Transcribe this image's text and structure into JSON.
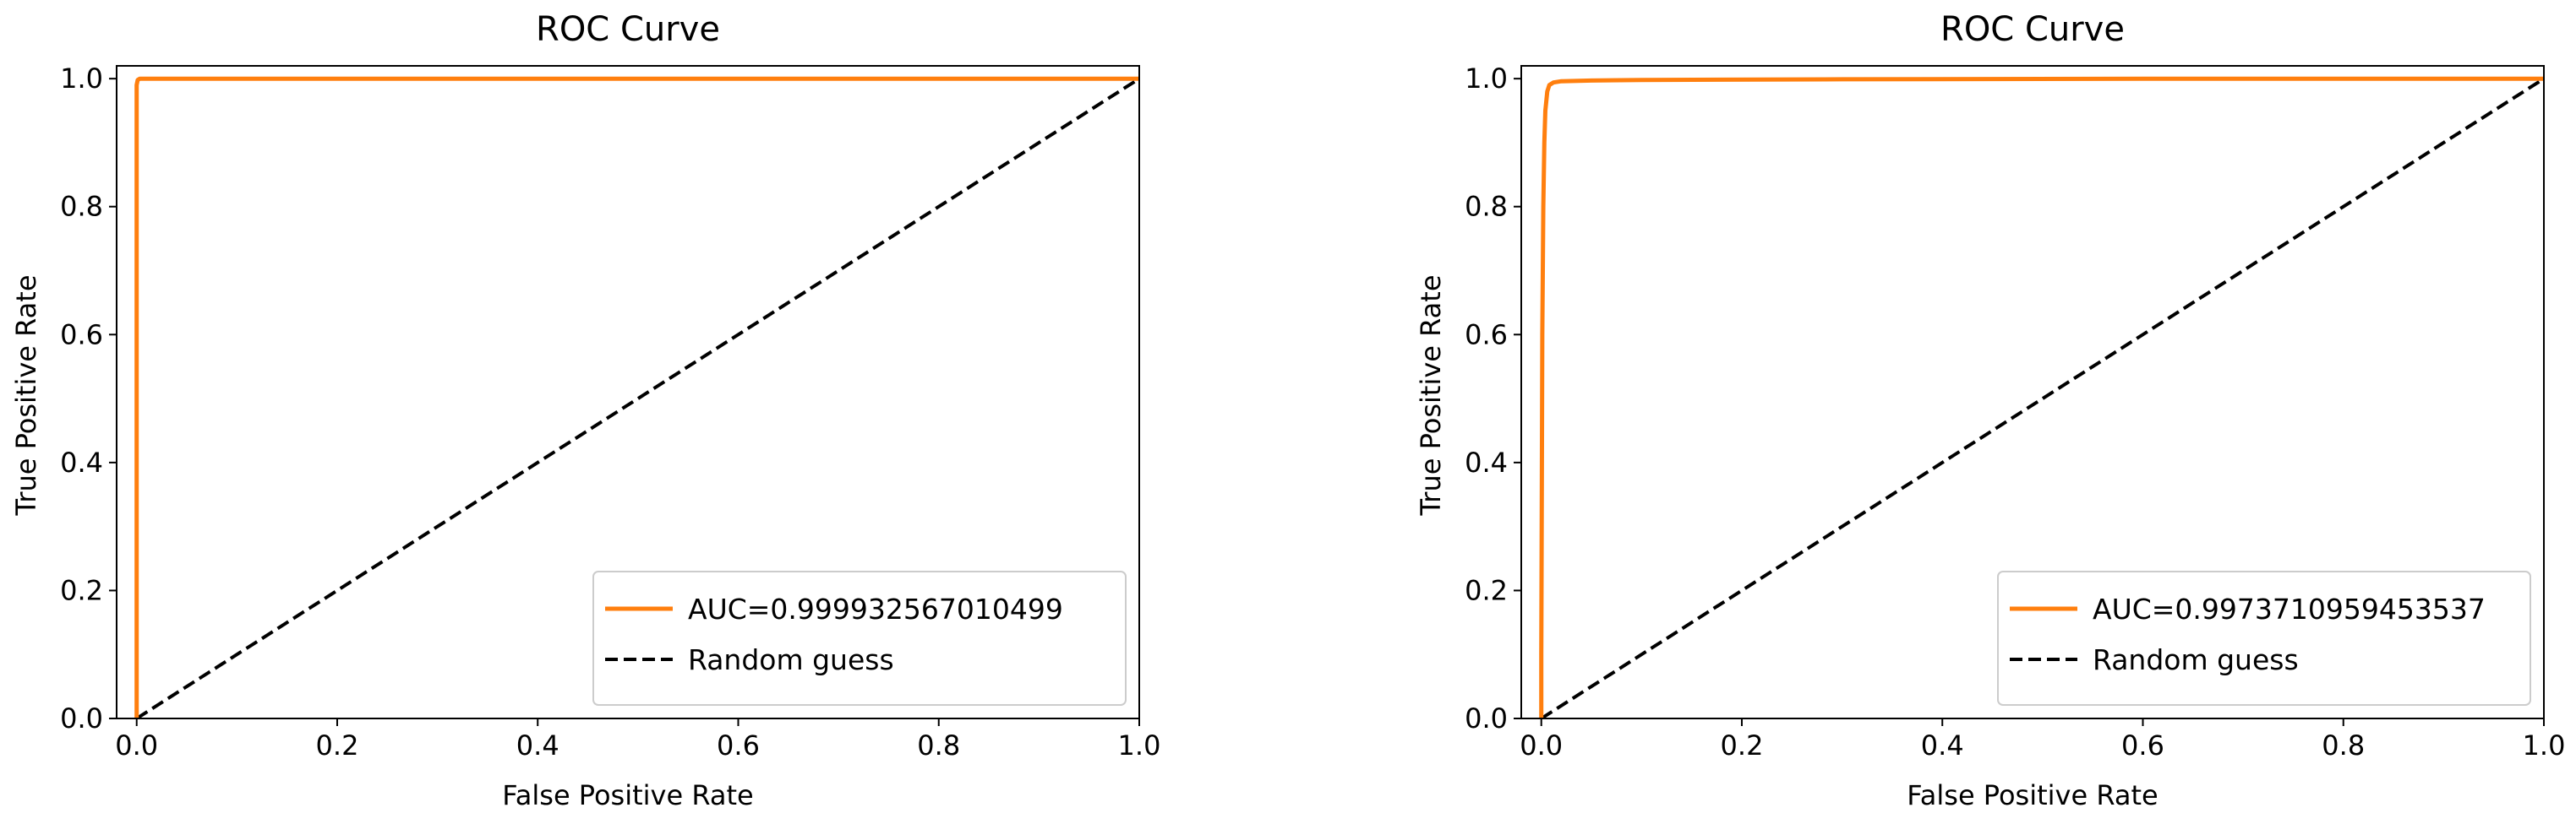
{
  "colors": {
    "roc": "#ff7f0e",
    "random": "#000000",
    "background": "#ffffff",
    "legend_border": "#cccccc"
  },
  "chart_data": [
    {
      "type": "line",
      "title": "ROC Curve",
      "xlabel": "False Positive Rate",
      "ylabel": "True Positive Rate",
      "xlim": [
        -0.02,
        1.0
      ],
      "ylim": [
        0.0,
        1.02
      ],
      "xticks": [
        "0.0",
        "0.2",
        "0.4",
        "0.6",
        "0.8",
        "1.0"
      ],
      "yticks": [
        "0.0",
        "0.2",
        "0.4",
        "0.6",
        "0.8",
        "1.0"
      ],
      "grid": false,
      "legend_position": "lower right",
      "series": [
        {
          "name": "AUC=0.999932567010499",
          "color": "#ff7f0e",
          "style": "solid",
          "x": [
            0.0,
            0.0,
            0.001,
            0.003,
            1.0
          ],
          "y": [
            0.0,
            0.99,
            0.998,
            1.0,
            1.0
          ]
        },
        {
          "name": "Random guess",
          "color": "#000000",
          "style": "dashed",
          "x": [
            0.0,
            1.0
          ],
          "y": [
            0.0,
            1.0
          ]
        }
      ]
    },
    {
      "type": "line",
      "title": "ROC Curve",
      "xlabel": "False Positive Rate",
      "ylabel": "True Positive Rate",
      "xlim": [
        -0.02,
        1.0
      ],
      "ylim": [
        0.0,
        1.02
      ],
      "xticks": [
        "0.0",
        "0.2",
        "0.4",
        "0.6",
        "0.8",
        "1.0"
      ],
      "yticks": [
        "0.0",
        "0.2",
        "0.4",
        "0.6",
        "0.8",
        "1.0"
      ],
      "grid": false,
      "legend_position": "lower right",
      "series": [
        {
          "name": "AUC=0.9973710959453537",
          "color": "#ff7f0e",
          "style": "solid",
          "x": [
            0.0,
            0.0,
            0.001,
            0.002,
            0.003,
            0.004,
            0.006,
            0.008,
            0.012,
            0.02,
            0.05,
            0.1,
            0.3,
            0.6,
            1.0
          ],
          "y": [
            0.0,
            0.1,
            0.6,
            0.8,
            0.9,
            0.95,
            0.98,
            0.99,
            0.994,
            0.996,
            0.997,
            0.998,
            0.999,
            1.0,
            1.0
          ]
        },
        {
          "name": "Random guess",
          "color": "#000000",
          "style": "dashed",
          "x": [
            0.0,
            1.0
          ],
          "y": [
            0.0,
            1.0
          ]
        }
      ]
    }
  ]
}
